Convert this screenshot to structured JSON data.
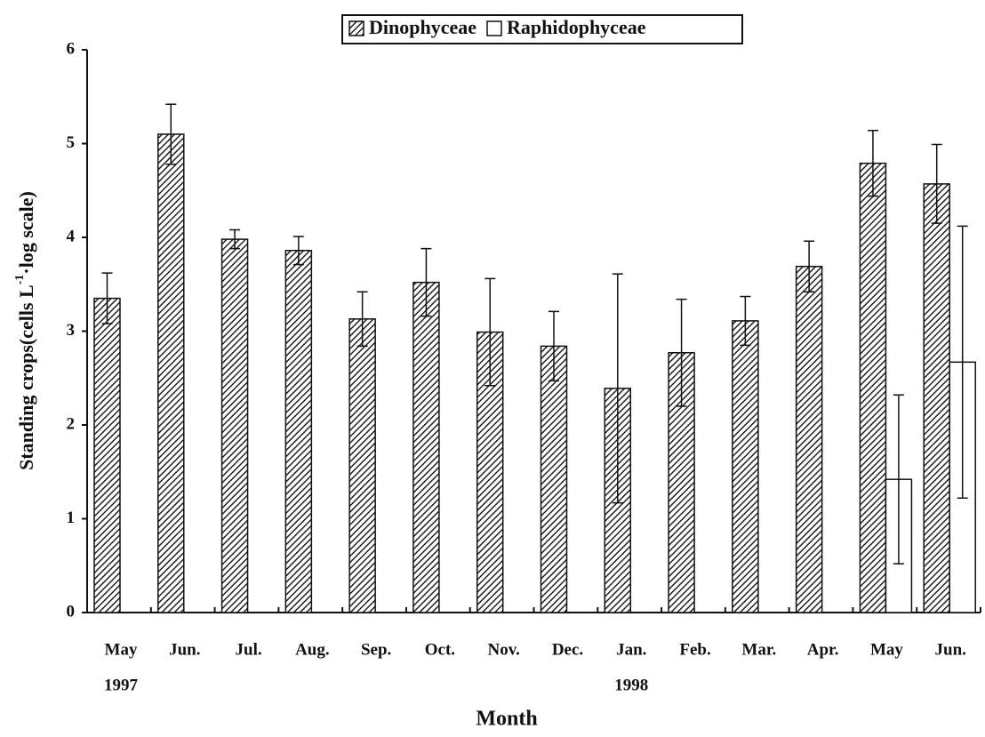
{
  "chart_data": {
    "type": "bar",
    "categories": [
      "May",
      "Jun.",
      "Jul.",
      "Aug.",
      "Sep.",
      "Oct.",
      "Nov.",
      "Dec.",
      "Jan.",
      "Feb.",
      "Mar.",
      "Apr.",
      "May",
      "Jun."
    ],
    "years": [
      "1997",
      null,
      null,
      null,
      null,
      null,
      null,
      null,
      "1998",
      null,
      null,
      null,
      null,
      null
    ],
    "series": [
      {
        "name": "Dinophyceae",
        "color": "#222222",
        "values": [
          3.35,
          5.1,
          3.98,
          3.86,
          3.13,
          3.52,
          2.99,
          2.84,
          2.39,
          2.77,
          3.11,
          3.69,
          4.79,
          4.57
        ],
        "errors": [
          0.27,
          0.32,
          0.1,
          0.15,
          0.29,
          0.36,
          0.57,
          0.37,
          1.22,
          0.57,
          0.26,
          0.27,
          0.35,
          0.42
        ]
      },
      {
        "name": "Raphidophyceae",
        "color": "#ffffff",
        "values": [
          null,
          null,
          null,
          null,
          null,
          null,
          null,
          null,
          null,
          null,
          null,
          null,
          1.42,
          2.67
        ],
        "errors": [
          null,
          null,
          null,
          null,
          null,
          null,
          null,
          null,
          null,
          null,
          null,
          null,
          0.9,
          1.45
        ]
      }
    ],
    "ylim": [
      0,
      6
    ],
    "yticks": [
      0,
      1,
      2,
      3,
      4,
      5,
      6
    ],
    "ylabel": [
      "Standing crops(cells L",
      "-1",
      "·log scale)"
    ],
    "xlabel": "Month"
  }
}
